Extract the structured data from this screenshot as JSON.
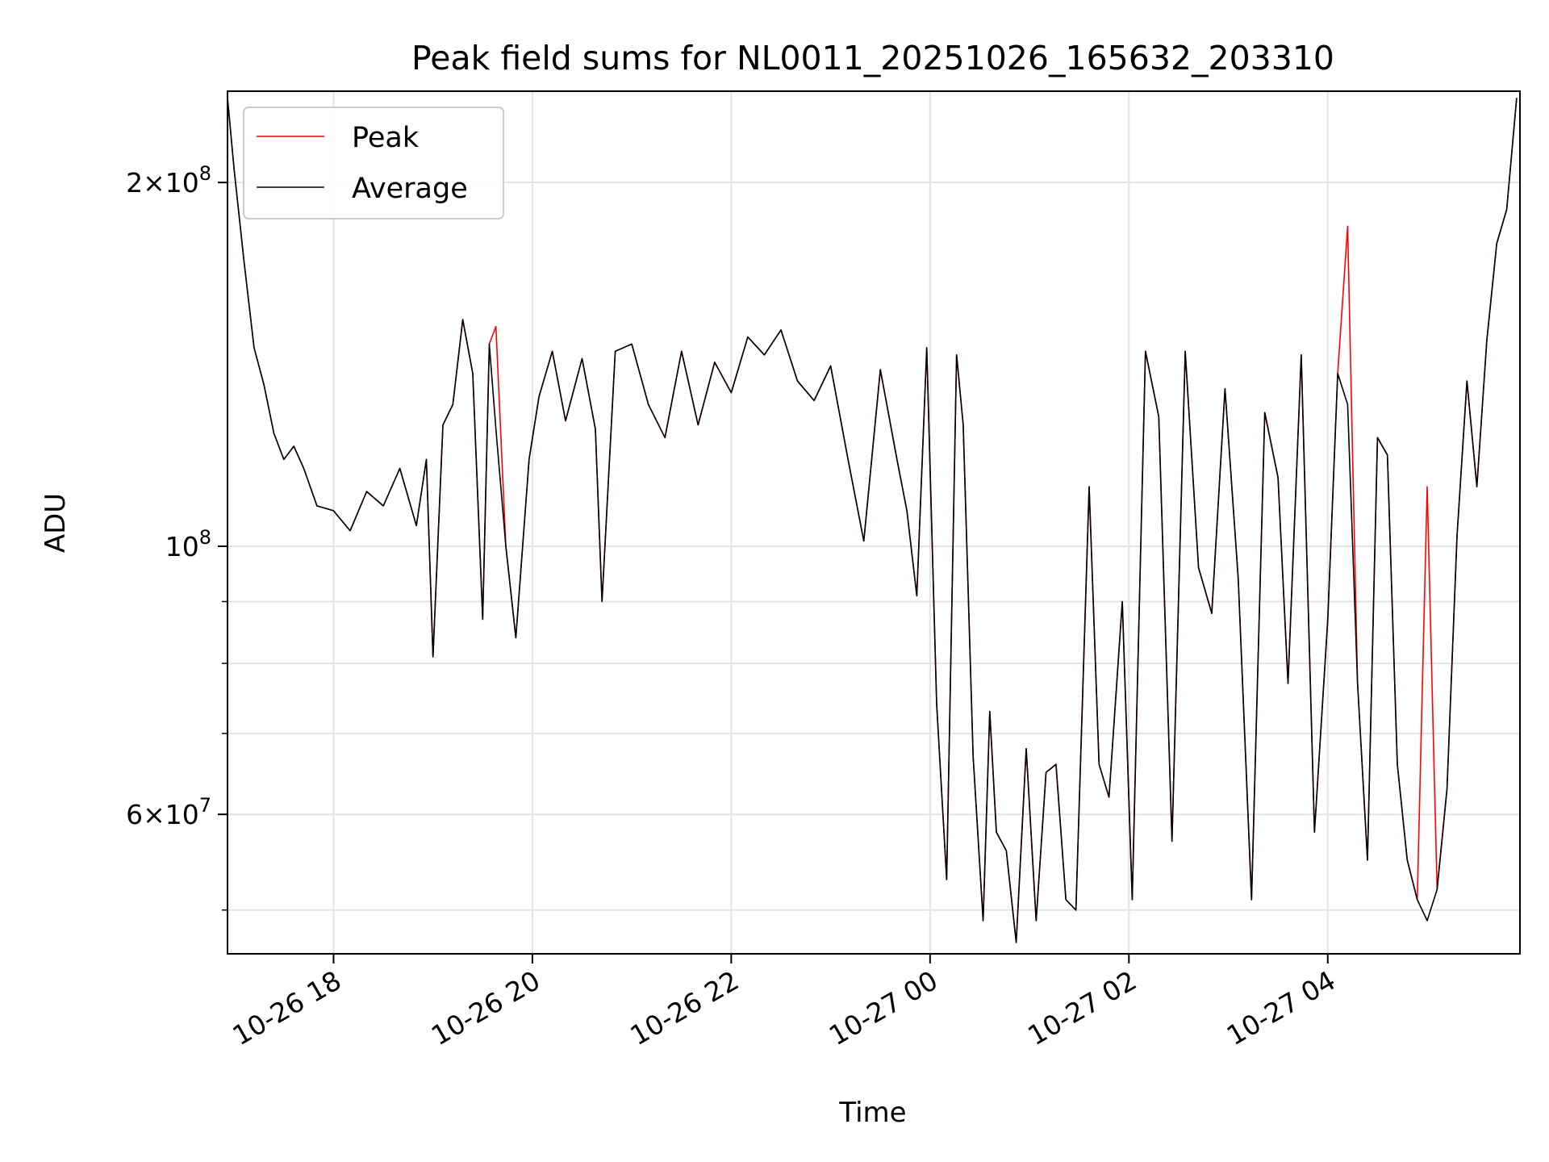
{
  "chart_data": {
    "type": "line",
    "title": "Peak field sums for NL0011_20251026_165632_203310",
    "xlabel": "Time",
    "ylabel": "ADU",
    "y_scale": "log",
    "xlim": [
      "2025-10-26 16:56",
      "2025-10-27 05:56"
    ],
    "ylim": [
      46000000,
      238000000
    ],
    "grid": true,
    "legend_position": "upper-left",
    "colors": {
      "Peak": "#ff0000",
      "Average": "#000000"
    },
    "x_ticks": [
      "10-26 18",
      "10-26 20",
      "10-26 22",
      "10-27 00",
      "10-27 02",
      "10-27 04"
    ],
    "x_tick_values": [
      "2025-10-26 18:00",
      "2025-10-26 20:00",
      "2025-10-26 22:00",
      "2025-10-27 00:00",
      "2025-10-27 02:00",
      "2025-10-27 04:00"
    ],
    "y_ticks": [
      {
        "value": 200000000,
        "mantissa": "2",
        "exponent": "8"
      },
      {
        "value": 100000000,
        "mantissa": "",
        "exponent": "8"
      },
      {
        "value": 60000000,
        "mantissa": "6",
        "exponent": "7"
      }
    ],
    "y_minor_ticks": [
      50000000,
      70000000,
      80000000,
      90000000
    ],
    "legend": [
      "Peak",
      "Average"
    ],
    "series": [
      {
        "name": "Average",
        "x": [
          "2025-10-26 16:56",
          "2025-10-26 17:00",
          "2025-10-26 17:06",
          "2025-10-26 17:12",
          "2025-10-26 17:18",
          "2025-10-26 17:24",
          "2025-10-26 17:30",
          "2025-10-26 17:36",
          "2025-10-26 17:42",
          "2025-10-26 17:50",
          "2025-10-26 18:00",
          "2025-10-26 18:10",
          "2025-10-26 18:20",
          "2025-10-26 18:30",
          "2025-10-26 18:40",
          "2025-10-26 18:50",
          "2025-10-26 18:56",
          "2025-10-26 19:00",
          "2025-10-26 19:06",
          "2025-10-26 19:12",
          "2025-10-26 19:18",
          "2025-10-26 19:24",
          "2025-10-26 19:30",
          "2025-10-26 19:34",
          "2025-10-26 19:38",
          "2025-10-26 19:44",
          "2025-10-26 19:50",
          "2025-10-26 19:58",
          "2025-10-26 20:04",
          "2025-10-26 20:12",
          "2025-10-26 20:20",
          "2025-10-26 20:30",
          "2025-10-26 20:38",
          "2025-10-26 20:42",
          "2025-10-26 20:50",
          "2025-10-26 21:00",
          "2025-10-26 21:10",
          "2025-10-26 21:20",
          "2025-10-26 21:30",
          "2025-10-26 21:40",
          "2025-10-26 21:50",
          "2025-10-26 22:00",
          "2025-10-26 22:10",
          "2025-10-26 22:20",
          "2025-10-26 22:30",
          "2025-10-26 22:40",
          "2025-10-26 22:50",
          "2025-10-26 23:00",
          "2025-10-26 23:10",
          "2025-10-26 23:20",
          "2025-10-26 23:30",
          "2025-10-26 23:40",
          "2025-10-26 23:46",
          "2025-10-26 23:52",
          "2025-10-26 23:58",
          "2025-10-27 00:04",
          "2025-10-27 00:10",
          "2025-10-27 00:16",
          "2025-10-27 00:20",
          "2025-10-27 00:26",
          "2025-10-27 00:32",
          "2025-10-27 00:36",
          "2025-10-27 00:40",
          "2025-10-27 00:46",
          "2025-10-27 00:52",
          "2025-10-27 00:58",
          "2025-10-27 01:04",
          "2025-10-27 01:10",
          "2025-10-27 01:16",
          "2025-10-27 01:22",
          "2025-10-27 01:28",
          "2025-10-27 01:36",
          "2025-10-27 01:42",
          "2025-10-27 01:48",
          "2025-10-27 01:56",
          "2025-10-27 02:02",
          "2025-10-27 02:10",
          "2025-10-27 02:18",
          "2025-10-27 02:26",
          "2025-10-27 02:34",
          "2025-10-27 02:42",
          "2025-10-27 02:50",
          "2025-10-27 02:58",
          "2025-10-27 03:06",
          "2025-10-27 03:14",
          "2025-10-27 03:22",
          "2025-10-27 03:30",
          "2025-10-27 03:36",
          "2025-10-27 03:44",
          "2025-10-27 03:52",
          "2025-10-27 04:00",
          "2025-10-27 04:06",
          "2025-10-27 04:12",
          "2025-10-27 04:18",
          "2025-10-27 04:24",
          "2025-10-27 04:30",
          "2025-10-27 04:36",
          "2025-10-27 04:42",
          "2025-10-27 04:48",
          "2025-10-27 04:54",
          "2025-10-27 05:00",
          "2025-10-27 05:06",
          "2025-10-27 05:12",
          "2025-10-27 05:18",
          "2025-10-27 05:24",
          "2025-10-27 05:30",
          "2025-10-27 05:36",
          "2025-10-27 05:42",
          "2025-10-27 05:48",
          "2025-10-27 05:54"
        ],
        "values": [
          235000000,
          205000000,
          172000000,
          146000000,
          136000000,
          124000000,
          118000000,
          121000000,
          116000000,
          108000000,
          107000000,
          103000000,
          111000000,
          108000000,
          116000000,
          104000000,
          118000000,
          81000000,
          126000000,
          131000000,
          154000000,
          139000000,
          87000000,
          147000000,
          125000000,
          100000000,
          84000000,
          118000000,
          133000000,
          145000000,
          127000000,
          143000000,
          125000000,
          90000000,
          145000000,
          147000000,
          131000000,
          123000000,
          145000000,
          126000000,
          142000000,
          134000000,
          149000000,
          144000000,
          151000000,
          137000000,
          132000000,
          141000000,
          119000000,
          101000000,
          140000000,
          118000000,
          107000000,
          91000000,
          146000000,
          74000000,
          53000000,
          144000000,
          126000000,
          67000000,
          49000000,
          73000000,
          58000000,
          56000000,
          47000000,
          68000000,
          49000000,
          65000000,
          66000000,
          51000000,
          50000000,
          112000000,
          66000000,
          62000000,
          90000000,
          51000000,
          145000000,
          128000000,
          57000000,
          145000000,
          96000000,
          88000000,
          135000000,
          94000000,
          51000000,
          129000000,
          114000000,
          77000000,
          144000000,
          58000000,
          87000000,
          139000000,
          131000000,
          77000000,
          55000000,
          123000000,
          119000000,
          66000000,
          55000000,
          51000000,
          49000000,
          52000000,
          63000000,
          102000000,
          137000000,
          112000000,
          148000000,
          178000000,
          190000000,
          235000000
        ]
      },
      {
        "name": "Peak",
        "x": [
          "2025-10-26 16:56",
          "2025-10-26 17:00",
          "2025-10-26 17:06",
          "2025-10-26 17:12",
          "2025-10-26 17:18",
          "2025-10-26 17:24",
          "2025-10-26 17:30",
          "2025-10-26 17:36",
          "2025-10-26 17:42",
          "2025-10-26 17:50",
          "2025-10-26 18:00",
          "2025-10-26 18:10",
          "2025-10-26 18:20",
          "2025-10-26 18:30",
          "2025-10-26 18:40",
          "2025-10-26 18:50",
          "2025-10-26 18:56",
          "2025-10-26 19:00",
          "2025-10-26 19:06",
          "2025-10-26 19:12",
          "2025-10-26 19:18",
          "2025-10-26 19:24",
          "2025-10-26 19:30",
          "2025-10-26 19:34",
          "2025-10-26 19:38",
          "2025-10-26 19:44",
          "2025-10-26 19:50",
          "2025-10-26 19:58",
          "2025-10-26 20:04",
          "2025-10-26 20:12",
          "2025-10-26 20:20",
          "2025-10-26 20:30",
          "2025-10-26 20:38",
          "2025-10-26 20:42",
          "2025-10-26 20:50",
          "2025-10-26 21:00",
          "2025-10-26 21:10",
          "2025-10-26 21:20",
          "2025-10-26 21:30",
          "2025-10-26 21:40",
          "2025-10-26 21:50",
          "2025-10-26 22:00",
          "2025-10-26 22:10",
          "2025-10-26 22:20",
          "2025-10-26 22:30",
          "2025-10-26 22:40",
          "2025-10-26 22:50",
          "2025-10-26 23:00",
          "2025-10-26 23:10",
          "2025-10-26 23:20",
          "2025-10-26 23:30",
          "2025-10-26 23:40",
          "2025-10-26 23:46",
          "2025-10-26 23:52",
          "2025-10-26 23:58",
          "2025-10-27 00:04",
          "2025-10-27 00:10",
          "2025-10-27 00:16",
          "2025-10-27 00:20",
          "2025-10-27 00:26",
          "2025-10-27 00:32",
          "2025-10-27 00:36",
          "2025-10-27 00:40",
          "2025-10-27 00:46",
          "2025-10-27 00:52",
          "2025-10-27 00:58",
          "2025-10-27 01:04",
          "2025-10-27 01:10",
          "2025-10-27 01:16",
          "2025-10-27 01:22",
          "2025-10-27 01:28",
          "2025-10-27 01:36",
          "2025-10-27 01:42",
          "2025-10-27 01:48",
          "2025-10-27 01:56",
          "2025-10-27 02:02",
          "2025-10-27 02:10",
          "2025-10-27 02:18",
          "2025-10-27 02:26",
          "2025-10-27 02:34",
          "2025-10-27 02:42",
          "2025-10-27 02:50",
          "2025-10-27 02:58",
          "2025-10-27 03:06",
          "2025-10-27 03:14",
          "2025-10-27 03:22",
          "2025-10-27 03:30",
          "2025-10-27 03:36",
          "2025-10-27 03:44",
          "2025-10-27 03:52",
          "2025-10-27 04:00",
          "2025-10-27 04:06",
          "2025-10-27 04:12",
          "2025-10-27 04:18",
          "2025-10-27 04:24",
          "2025-10-27 04:30",
          "2025-10-27 04:36",
          "2025-10-27 04:42",
          "2025-10-27 04:48",
          "2025-10-27 04:54",
          "2025-10-27 05:00",
          "2025-10-27 05:06",
          "2025-10-27 05:12",
          "2025-10-27 05:18",
          "2025-10-27 05:24",
          "2025-10-27 05:30",
          "2025-10-27 05:36",
          "2025-10-27 05:42",
          "2025-10-27 05:48",
          "2025-10-27 05:54"
        ],
        "values": [
          235000000,
          205000000,
          172000000,
          146000000,
          136000000,
          124000000,
          118000000,
          121000000,
          116000000,
          108000000,
          107000000,
          103000000,
          111000000,
          108000000,
          116000000,
          104000000,
          118000000,
          81000000,
          126000000,
          131000000,
          154000000,
          139000000,
          87000000,
          147000000,
          152000000,
          100000000,
          84000000,
          118000000,
          133000000,
          145000000,
          127000000,
          143000000,
          125000000,
          90000000,
          145000000,
          147000000,
          131000000,
          123000000,
          145000000,
          126000000,
          142000000,
          134000000,
          149000000,
          144000000,
          151000000,
          137000000,
          132000000,
          141000000,
          119000000,
          101000000,
          140000000,
          118000000,
          107000000,
          91000000,
          146000000,
          74000000,
          53000000,
          144000000,
          126000000,
          67000000,
          49000000,
          73000000,
          58000000,
          56000000,
          47000000,
          68000000,
          49000000,
          65000000,
          66000000,
          51000000,
          50000000,
          112000000,
          66000000,
          62000000,
          90000000,
          51000000,
          145000000,
          128000000,
          57000000,
          145000000,
          96000000,
          88000000,
          135000000,
          94000000,
          51000000,
          129000000,
          114000000,
          77000000,
          144000000,
          58000000,
          87000000,
          139000000,
          184000000,
          77000000,
          55000000,
          123000000,
          119000000,
          66000000,
          55000000,
          51000000,
          112000000,
          52000000,
          63000000,
          102000000,
          137000000,
          112000000,
          148000000,
          178000000,
          190000000,
          235000000
        ]
      }
    ]
  }
}
